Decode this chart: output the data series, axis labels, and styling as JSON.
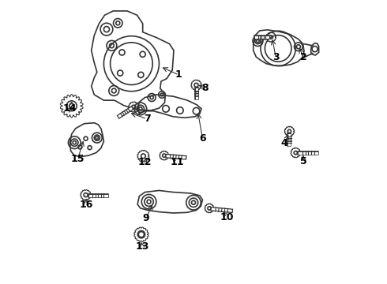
{
  "background_color": "#ffffff",
  "line_color": "#333333",
  "fig_width": 4.9,
  "fig_height": 3.6,
  "dpi": 100,
  "label_fontsize": 9,
  "label_fontweight": "bold"
}
